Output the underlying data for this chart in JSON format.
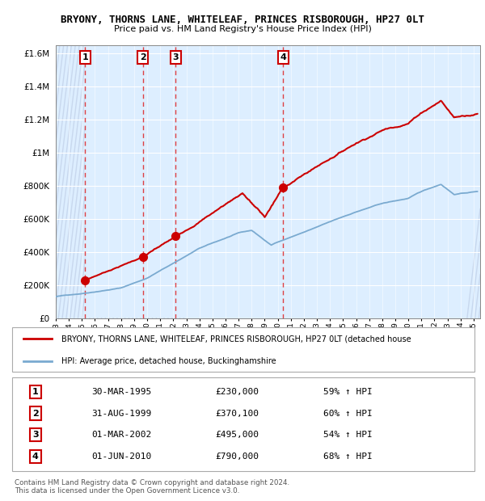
{
  "title": "BRYONY, THORNS LANE, WHITELEAF, PRINCES RISBOROUGH, HP27 0LT",
  "subtitle": "Price paid vs. HM Land Registry's House Price Index (HPI)",
  "ylim": [
    0,
    1650000
  ],
  "yticks": [
    0,
    200000,
    400000,
    600000,
    800000,
    1000000,
    1200000,
    1400000,
    1600000
  ],
  "ytick_labels": [
    "£0",
    "£200K",
    "£400K",
    "£600K",
    "£800K",
    "£1M",
    "£1.2M",
    "£1.4M",
    "£1.6M"
  ],
  "xmin": 1993,
  "xmax": 2025.5,
  "sales": [
    {
      "date_num": 1995.25,
      "price": 230000,
      "label": "1"
    },
    {
      "date_num": 1999.67,
      "price": 370100,
      "label": "2"
    },
    {
      "date_num": 2002.17,
      "price": 495000,
      "label": "3"
    },
    {
      "date_num": 2010.42,
      "price": 790000,
      "label": "4"
    }
  ],
  "sale_color": "#cc0000",
  "hpi_color": "#7aaad0",
  "chart_bg": "#ddeeff",
  "hatch_color": "#c8d8ee",
  "grid_color": "#aabbcc",
  "vline_color": "#dd2222",
  "legend_line1": "BRYONY, THORNS LANE, WHITELEAF, PRINCES RISBOROUGH, HP27 0LT (detached house",
  "legend_line2": "HPI: Average price, detached house, Buckinghamshire",
  "table_data": [
    [
      "1",
      "30-MAR-1995",
      "£230,000",
      "59% ↑ HPI"
    ],
    [
      "2",
      "31-AUG-1999",
      "£370,100",
      "60% ↑ HPI"
    ],
    [
      "3",
      "01-MAR-2002",
      "£495,000",
      "54% ↑ HPI"
    ],
    [
      "4",
      "01-JUN-2010",
      "£790,000",
      "68% ↑ HPI"
    ]
  ],
  "footer": "Contains HM Land Registry data © Crown copyright and database right 2024.\nThis data is licensed under the Open Government Licence v3.0."
}
